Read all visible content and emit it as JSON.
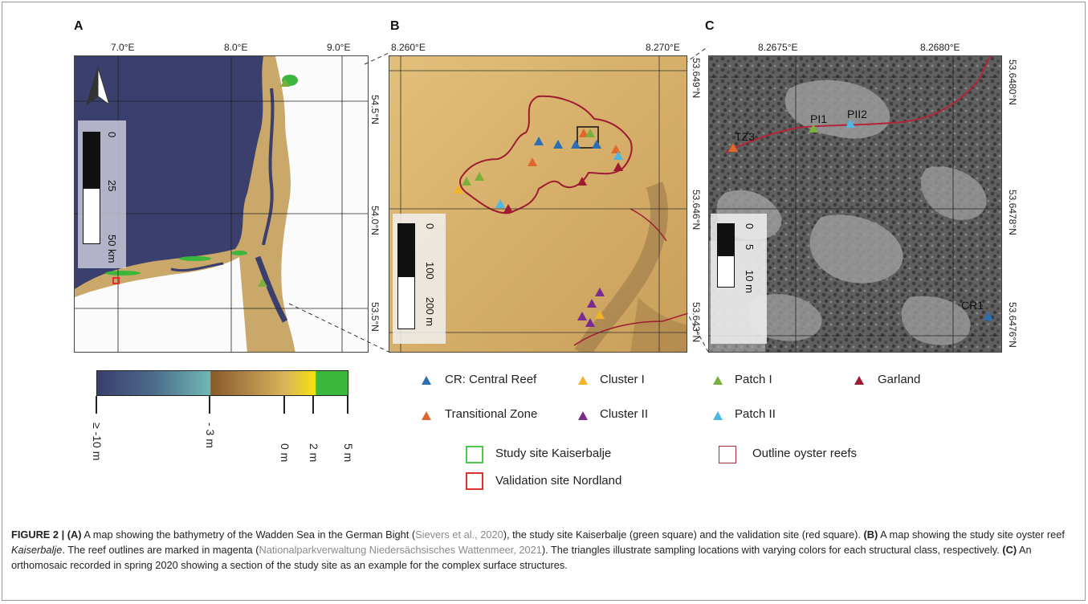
{
  "panels": {
    "a": {
      "letter": "A",
      "lon_ticks": [
        "7.0°E",
        "8.0°E",
        "9.0°E"
      ],
      "lat_ticks": [
        "54.5°N",
        "54.0°N",
        "53.5°N"
      ],
      "scale_labels": [
        "0",
        "25",
        "50 km"
      ],
      "north_arrow": "north-arrow-icon"
    },
    "b": {
      "letter": "B",
      "lon_ticks": [
        "8.260°E",
        "8.270°E"
      ],
      "lat_ticks": [
        "53.649°N",
        "53.646°N",
        "53.643°N"
      ],
      "scale_labels": [
        "0",
        "100",
        "200 m"
      ]
    },
    "c": {
      "letter": "C",
      "lon_ticks": [
        "8.2675°E",
        "8.2680°E"
      ],
      "lat_ticks": [
        "53.6480°N",
        "53.6478°N",
        "53.6476°N"
      ],
      "scale_labels": [
        "0",
        "5",
        "10 m"
      ],
      "point_labels": [
        "TZ3",
        "PI1",
        "PII2",
        "CR1"
      ]
    }
  },
  "colorbar": {
    "labels": [
      "≥ -10 m",
      "- 3 m",
      "0 m",
      "2 m",
      "5 m"
    ],
    "colors": [
      "#3a3f6e",
      "#6fb7b4",
      "#8a5a2b",
      "#d9b45a",
      "#f5e20f",
      "#3bb73b"
    ]
  },
  "legend": {
    "classes": [
      {
        "label": "CR: Central Reef",
        "color": "#2a6fb5"
      },
      {
        "label": "Cluster I",
        "color": "#f0b429"
      },
      {
        "label": "Patch I",
        "color": "#7ab03b"
      },
      {
        "label": "Garland",
        "color": "#9e1b32"
      },
      {
        "label": "Transitional Zone",
        "color": "#e0662a"
      },
      {
        "label": "Cluster II",
        "color": "#7b2a8f"
      },
      {
        "label": "Patch II",
        "color": "#4fb7e3"
      }
    ],
    "boxes": [
      {
        "label": "Study site Kaiserbalje",
        "color": "#4cc84c"
      },
      {
        "label": "Outline oyster reefs",
        "color": "#9e3040"
      },
      {
        "label": "Validation site Nordland",
        "color": "#e03030"
      }
    ]
  },
  "caption": {
    "fig": "FIGURE 2 | ",
    "a_tag": "(A)",
    "a_text1": " A map showing the bathymetry of the Wadden Sea in the German Bight (",
    "a_ref": "Sievers et al., 2020",
    "a_text2": "), the study site Kaiserbalje (green square) and the validation site (red square). ",
    "b_tag": "(B)",
    "b_text1": " A map showing the study site oyster reef ",
    "b_em": "Kaiserbalje",
    "b_text2": ". The reef outlines are marked in magenta (",
    "b_ref": "Nationalparkverwaltung Niedersächsisches Wattenmeer, 2021",
    "b_text3": "). The triangles illustrate sampling locations with varying colors for each structural class, respectively. ",
    "c_tag": "(C)",
    "c_text": " An orthomosaic recorded in spring 2020 showing a section of the study site as an example for the complex surface structures."
  }
}
